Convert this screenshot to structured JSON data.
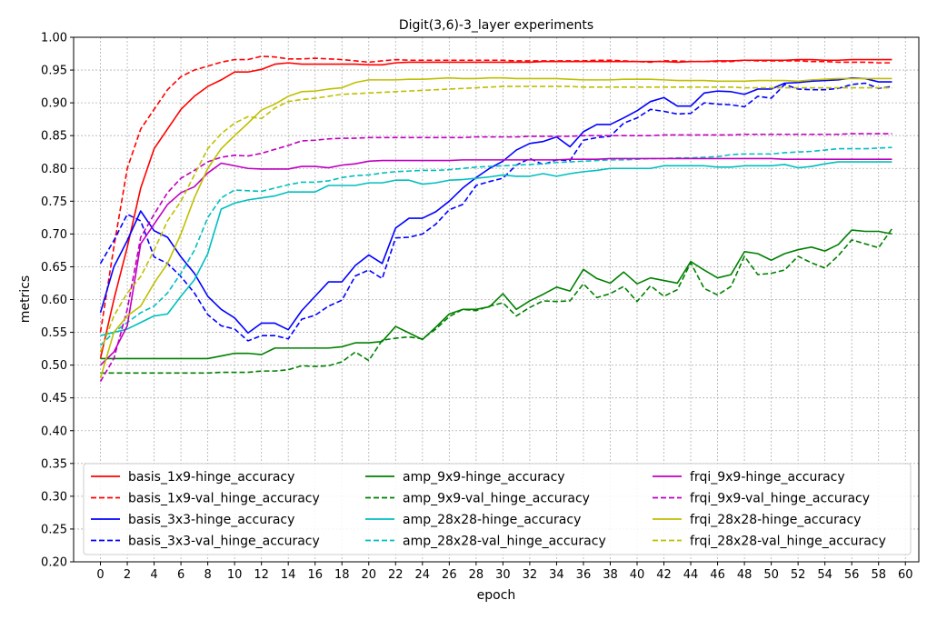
{
  "chart_data": {
    "type": "line",
    "title": "Digit(3,6)-3_layer experiments",
    "xlabel": "epoch",
    "ylabel": "metrics",
    "xlim": [
      -2,
      61
    ],
    "ylim": [
      0.2,
      1.0
    ],
    "xticks": [
      0,
      2,
      4,
      6,
      8,
      10,
      12,
      14,
      16,
      18,
      20,
      22,
      24,
      26,
      28,
      30,
      32,
      34,
      36,
      38,
      40,
      42,
      44,
      46,
      48,
      50,
      52,
      54,
      56,
      58,
      60
    ],
    "yticks": [
      0.2,
      0.25,
      0.3,
      0.35,
      0.4,
      0.45,
      0.5,
      0.55,
      0.6,
      0.65,
      0.7,
      0.75,
      0.8,
      0.85,
      0.9,
      0.95,
      1.0
    ],
    "grid": true,
    "legend_location": "lower-center",
    "legend_columns": 3,
    "x": [
      0,
      1,
      2,
      3,
      4,
      5,
      6,
      7,
      8,
      9,
      10,
      11,
      12,
      13,
      14,
      15,
      16,
      17,
      18,
      19,
      20,
      21,
      22,
      23,
      24,
      25,
      26,
      27,
      28,
      29,
      30,
      31,
      32,
      33,
      34,
      35,
      36,
      37,
      38,
      39,
      40,
      41,
      42,
      43,
      44,
      45,
      46,
      47,
      48,
      49,
      50,
      51,
      52,
      53,
      54,
      55,
      56,
      57,
      58,
      59
    ],
    "series": [
      {
        "name": "basis_1x9-hinge_accuracy",
        "color": "#ff0000",
        "dash": "solid",
        "values": [
          0.51,
          0.6,
          0.68,
          0.77,
          0.83,
          0.86,
          0.89,
          0.91,
          0.925,
          0.935,
          0.947,
          0.947,
          0.951,
          0.959,
          0.961,
          0.959,
          0.959,
          0.959,
          0.959,
          0.959,
          0.958,
          0.958,
          0.961,
          0.962,
          0.962,
          0.962,
          0.962,
          0.962,
          0.962,
          0.962,
          0.962,
          0.962,
          0.962,
          0.963,
          0.963,
          0.963,
          0.963,
          0.963,
          0.963,
          0.963,
          0.963,
          0.963,
          0.963,
          0.962,
          0.963,
          0.963,
          0.964,
          0.964,
          0.965,
          0.965,
          0.965,
          0.965,
          0.966,
          0.966,
          0.965,
          0.965,
          0.966,
          0.966,
          0.966,
          0.966
        ]
      },
      {
        "name": "basis_1x9-val_hinge_accuracy",
        "color": "#ff0000",
        "dash": "dashed",
        "values": [
          0.55,
          0.68,
          0.8,
          0.86,
          0.89,
          0.92,
          0.94,
          0.95,
          0.956,
          0.962,
          0.966,
          0.966,
          0.971,
          0.97,
          0.967,
          0.967,
          0.968,
          0.967,
          0.966,
          0.964,
          0.962,
          0.964,
          0.966,
          0.965,
          0.965,
          0.965,
          0.965,
          0.965,
          0.965,
          0.965,
          0.965,
          0.964,
          0.964,
          0.964,
          0.964,
          0.964,
          0.964,
          0.965,
          0.965,
          0.964,
          0.963,
          0.962,
          0.964,
          0.964,
          0.963,
          0.963,
          0.963,
          0.963,
          0.965,
          0.964,
          0.964,
          0.964,
          0.964,
          0.963,
          0.963,
          0.962,
          0.962,
          0.962,
          0.961,
          0.961
        ]
      },
      {
        "name": "basis_3x3-hinge_accuracy",
        "color": "#0000ff",
        "dash": "solid",
        "values": [
          0.58,
          0.65,
          0.69,
          0.735,
          0.705,
          0.695,
          0.665,
          0.64,
          0.605,
          0.585,
          0.572,
          0.549,
          0.564,
          0.564,
          0.554,
          0.583,
          0.605,
          0.627,
          0.627,
          0.652,
          0.668,
          0.655,
          0.709,
          0.724,
          0.724,
          0.734,
          0.75,
          0.77,
          0.786,
          0.8,
          0.811,
          0.828,
          0.838,
          0.841,
          0.848,
          0.833,
          0.856,
          0.867,
          0.867,
          0.877,
          0.888,
          0.902,
          0.908,
          0.895,
          0.895,
          0.915,
          0.918,
          0.917,
          0.913,
          0.921,
          0.921,
          0.93,
          0.931,
          0.933,
          0.934,
          0.935,
          0.938,
          0.937,
          0.932,
          0.932
        ]
      },
      {
        "name": "basis_3x3-val_hinge_accuracy",
        "color": "#0000ff",
        "dash": "dashed",
        "values": [
          0.655,
          0.69,
          0.73,
          0.72,
          0.665,
          0.655,
          0.635,
          0.61,
          0.577,
          0.56,
          0.555,
          0.537,
          0.545,
          0.545,
          0.54,
          0.57,
          0.576,
          0.59,
          0.599,
          0.636,
          0.645,
          0.632,
          0.694,
          0.695,
          0.7,
          0.715,
          0.737,
          0.745,
          0.774,
          0.78,
          0.785,
          0.805,
          0.815,
          0.806,
          0.813,
          0.812,
          0.843,
          0.847,
          0.849,
          0.869,
          0.877,
          0.89,
          0.887,
          0.883,
          0.884,
          0.9,
          0.898,
          0.897,
          0.894,
          0.91,
          0.907,
          0.928,
          0.921,
          0.92,
          0.92,
          0.922,
          0.928,
          0.93,
          0.922,
          0.925
        ]
      },
      {
        "name": "amp_9x9-hinge_accuracy",
        "color": "#008000",
        "dash": "solid",
        "values": [
          0.51,
          0.51,
          0.51,
          0.51,
          0.51,
          0.51,
          0.51,
          0.51,
          0.51,
          0.514,
          0.518,
          0.518,
          0.516,
          0.526,
          0.526,
          0.526,
          0.526,
          0.526,
          0.528,
          0.534,
          0.534,
          0.536,
          0.559,
          0.549,
          0.539,
          0.558,
          0.578,
          0.585,
          0.585,
          0.589,
          0.609,
          0.585,
          0.598,
          0.608,
          0.619,
          0.613,
          0.646,
          0.632,
          0.625,
          0.642,
          0.624,
          0.633,
          0.629,
          0.625,
          0.658,
          0.645,
          0.633,
          0.638,
          0.673,
          0.67,
          0.66,
          0.67,
          0.676,
          0.68,
          0.674,
          0.684,
          0.706,
          0.704,
          0.704,
          0.7
        ]
      },
      {
        "name": "amp_9x9-val_hinge_accuracy",
        "color": "#008000",
        "dash": "dashed",
        "values": [
          0.488,
          0.488,
          0.488,
          0.488,
          0.488,
          0.488,
          0.488,
          0.488,
          0.488,
          0.489,
          0.489,
          0.489,
          0.491,
          0.491,
          0.493,
          0.499,
          0.498,
          0.499,
          0.505,
          0.52,
          0.507,
          0.538,
          0.541,
          0.543,
          0.54,
          0.555,
          0.574,
          0.585,
          0.583,
          0.59,
          0.595,
          0.575,
          0.588,
          0.598,
          0.597,
          0.598,
          0.624,
          0.603,
          0.609,
          0.62,
          0.597,
          0.621,
          0.605,
          0.615,
          0.656,
          0.617,
          0.607,
          0.62,
          0.666,
          0.638,
          0.64,
          0.645,
          0.666,
          0.656,
          0.648,
          0.667,
          0.691,
          0.685,
          0.679,
          0.708
        ]
      },
      {
        "name": "amp_28x28-hinge_accuracy",
        "color": "#00bfbf",
        "dash": "solid",
        "values": [
          0.545,
          0.55,
          0.555,
          0.565,
          0.575,
          0.578,
          0.605,
          0.63,
          0.67,
          0.738,
          0.747,
          0.752,
          0.755,
          0.758,
          0.764,
          0.764,
          0.764,
          0.774,
          0.774,
          0.774,
          0.778,
          0.778,
          0.782,
          0.782,
          0.776,
          0.778,
          0.782,
          0.783,
          0.785,
          0.787,
          0.79,
          0.788,
          0.788,
          0.792,
          0.788,
          0.792,
          0.795,
          0.797,
          0.8,
          0.8,
          0.8,
          0.8,
          0.804,
          0.804,
          0.804,
          0.804,
          0.802,
          0.802,
          0.804,
          0.804,
          0.804,
          0.806,
          0.801,
          0.803,
          0.807,
          0.81,
          0.81,
          0.81,
          0.81,
          0.81
        ]
      },
      {
        "name": "amp_28x28-val_hinge_accuracy",
        "color": "#00bfbf",
        "dash": "dashed",
        "values": [
          0.53,
          0.55,
          0.565,
          0.58,
          0.59,
          0.61,
          0.64,
          0.675,
          0.725,
          0.755,
          0.767,
          0.766,
          0.765,
          0.77,
          0.775,
          0.779,
          0.779,
          0.781,
          0.786,
          0.789,
          0.79,
          0.793,
          0.795,
          0.796,
          0.797,
          0.797,
          0.798,
          0.8,
          0.802,
          0.803,
          0.804,
          0.805,
          0.806,
          0.807,
          0.809,
          0.81,
          0.811,
          0.812,
          0.813,
          0.813,
          0.814,
          0.815,
          0.815,
          0.816,
          0.816,
          0.817,
          0.818,
          0.821,
          0.822,
          0.822,
          0.822,
          0.824,
          0.825,
          0.826,
          0.828,
          0.83,
          0.83,
          0.83,
          0.831,
          0.832
        ]
      },
      {
        "name": "frqi_9x9-hinge_accuracy",
        "color": "#bf00bf",
        "dash": "solid",
        "values": [
          0.5,
          0.52,
          0.56,
          0.685,
          0.715,
          0.745,
          0.763,
          0.772,
          0.793,
          0.808,
          0.804,
          0.8,
          0.799,
          0.799,
          0.799,
          0.803,
          0.803,
          0.801,
          0.805,
          0.807,
          0.811,
          0.812,
          0.812,
          0.812,
          0.812,
          0.812,
          0.812,
          0.813,
          0.813,
          0.813,
          0.813,
          0.813,
          0.813,
          0.813,
          0.813,
          0.814,
          0.814,
          0.814,
          0.815,
          0.815,
          0.815,
          0.815,
          0.815,
          0.815,
          0.815,
          0.815,
          0.815,
          0.815,
          0.815,
          0.815,
          0.815,
          0.814,
          0.814,
          0.814,
          0.814,
          0.814,
          0.814,
          0.814,
          0.814,
          0.814
        ]
      },
      {
        "name": "frqi_9x9-val_hinge_accuracy",
        "color": "#bf00bf",
        "dash": "dashed",
        "values": [
          0.475,
          0.51,
          0.585,
          0.695,
          0.73,
          0.763,
          0.785,
          0.797,
          0.81,
          0.817,
          0.82,
          0.819,
          0.823,
          0.829,
          0.835,
          0.842,
          0.843,
          0.845,
          0.846,
          0.846,
          0.847,
          0.847,
          0.847,
          0.847,
          0.847,
          0.847,
          0.847,
          0.847,
          0.848,
          0.848,
          0.848,
          0.848,
          0.849,
          0.849,
          0.849,
          0.849,
          0.85,
          0.85,
          0.85,
          0.85,
          0.85,
          0.85,
          0.851,
          0.851,
          0.851,
          0.851,
          0.851,
          0.851,
          0.852,
          0.852,
          0.852,
          0.852,
          0.852,
          0.852,
          0.852,
          0.852,
          0.853,
          0.853,
          0.853,
          0.853
        ]
      },
      {
        "name": "frqi_28x28-hinge_accuracy",
        "color": "#bfbf00",
        "dash": "solid",
        "values": [
          0.48,
          0.55,
          0.575,
          0.59,
          0.625,
          0.655,
          0.7,
          0.755,
          0.8,
          0.83,
          0.85,
          0.869,
          0.889,
          0.898,
          0.91,
          0.917,
          0.918,
          0.921,
          0.923,
          0.931,
          0.935,
          0.935,
          0.935,
          0.936,
          0.936,
          0.937,
          0.938,
          0.937,
          0.937,
          0.938,
          0.938,
          0.937,
          0.937,
          0.937,
          0.937,
          0.936,
          0.935,
          0.935,
          0.935,
          0.936,
          0.936,
          0.936,
          0.935,
          0.934,
          0.934,
          0.934,
          0.933,
          0.933,
          0.933,
          0.934,
          0.934,
          0.934,
          0.933,
          0.935,
          0.936,
          0.937,
          0.937,
          0.937,
          0.937,
          0.937
        ]
      },
      {
        "name": "frqi_28x28-val_hinge_accuracy",
        "color": "#bfbf00",
        "dash": "dashed",
        "values": [
          0.52,
          0.575,
          0.61,
          0.635,
          0.675,
          0.72,
          0.75,
          0.79,
          0.83,
          0.853,
          0.869,
          0.879,
          0.876,
          0.892,
          0.902,
          0.905,
          0.907,
          0.91,
          0.913,
          0.914,
          0.915,
          0.916,
          0.917,
          0.918,
          0.919,
          0.92,
          0.921,
          0.922,
          0.923,
          0.924,
          0.925,
          0.925,
          0.925,
          0.925,
          0.925,
          0.925,
          0.924,
          0.924,
          0.924,
          0.924,
          0.924,
          0.924,
          0.924,
          0.924,
          0.924,
          0.924,
          0.924,
          0.924,
          0.923,
          0.923,
          0.923,
          0.923,
          0.923,
          0.923,
          0.923,
          0.923,
          0.923,
          0.923,
          0.923,
          0.923
        ]
      }
    ]
  }
}
